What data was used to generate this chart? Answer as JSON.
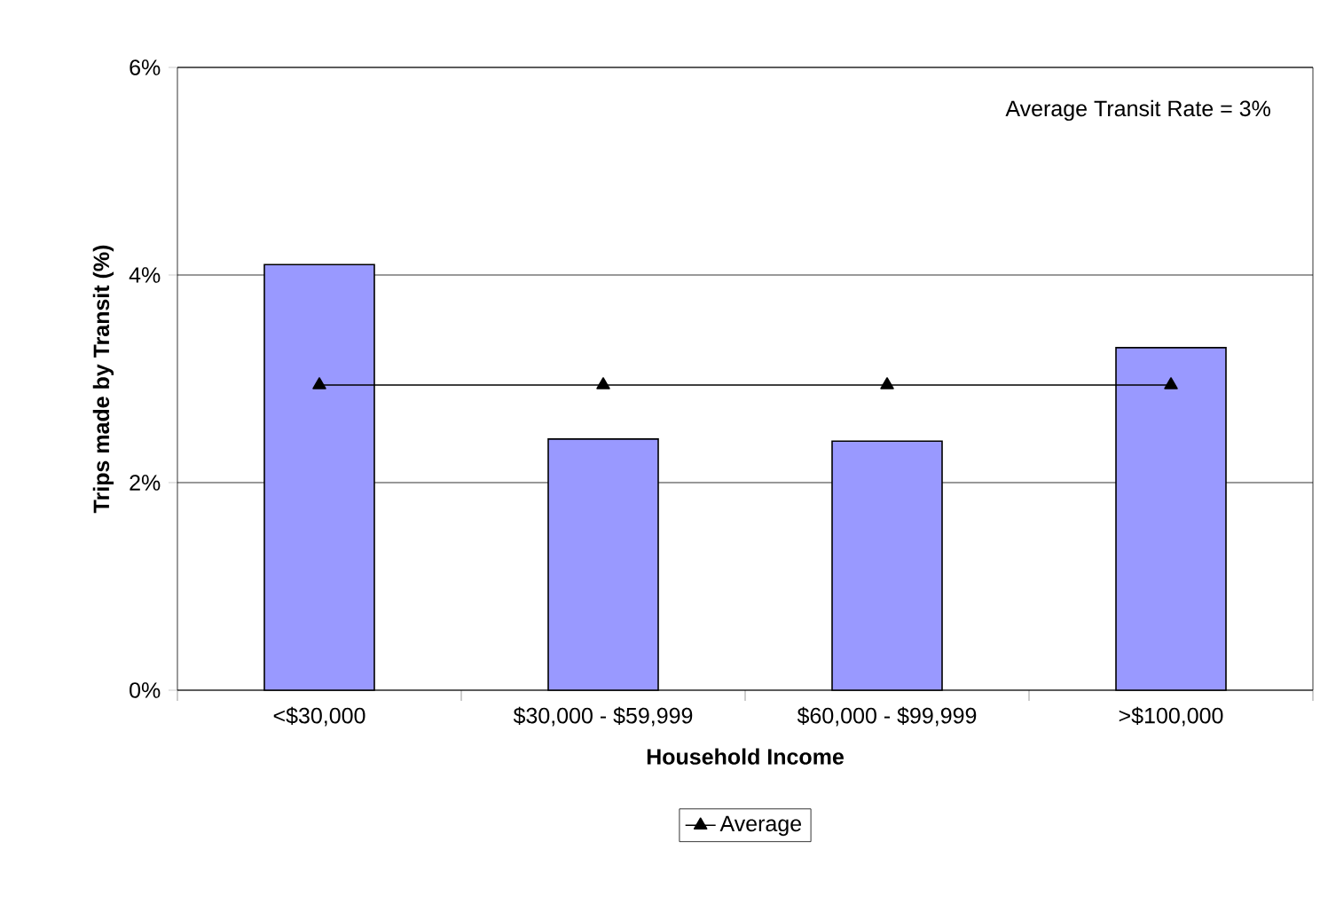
{
  "chart_data": {
    "type": "bar",
    "xlabel": "Household Income",
    "ylabel": "Trips made by Transit (%)",
    "categories": [
      "<$30,000",
      "$30,000 - $59,999",
      "$60,000 - $99,999",
      ">$100,000"
    ],
    "series": [
      {
        "color": "#9999ff",
        "values": [
          4.1,
          2.42,
          2.4,
          3.3
        ]
      },
      {
        "type": "line",
        "name": "Average",
        "color": "#000000",
        "marker": "triangle",
        "values": [
          2.94,
          2.94,
          2.94,
          2.94
        ]
      }
    ],
    "ylim": [
      0,
      6
    ],
    "yticks": [
      {
        "value": 0,
        "label": "0%"
      },
      {
        "value": 2,
        "label": "2%"
      },
      {
        "value": 4,
        "label": "4%"
      },
      {
        "value": 6,
        "label": "6%"
      }
    ],
    "grid": "y",
    "legend": "bottom",
    "annotations": [
      "Average Transit Rate = 3%"
    ]
  }
}
